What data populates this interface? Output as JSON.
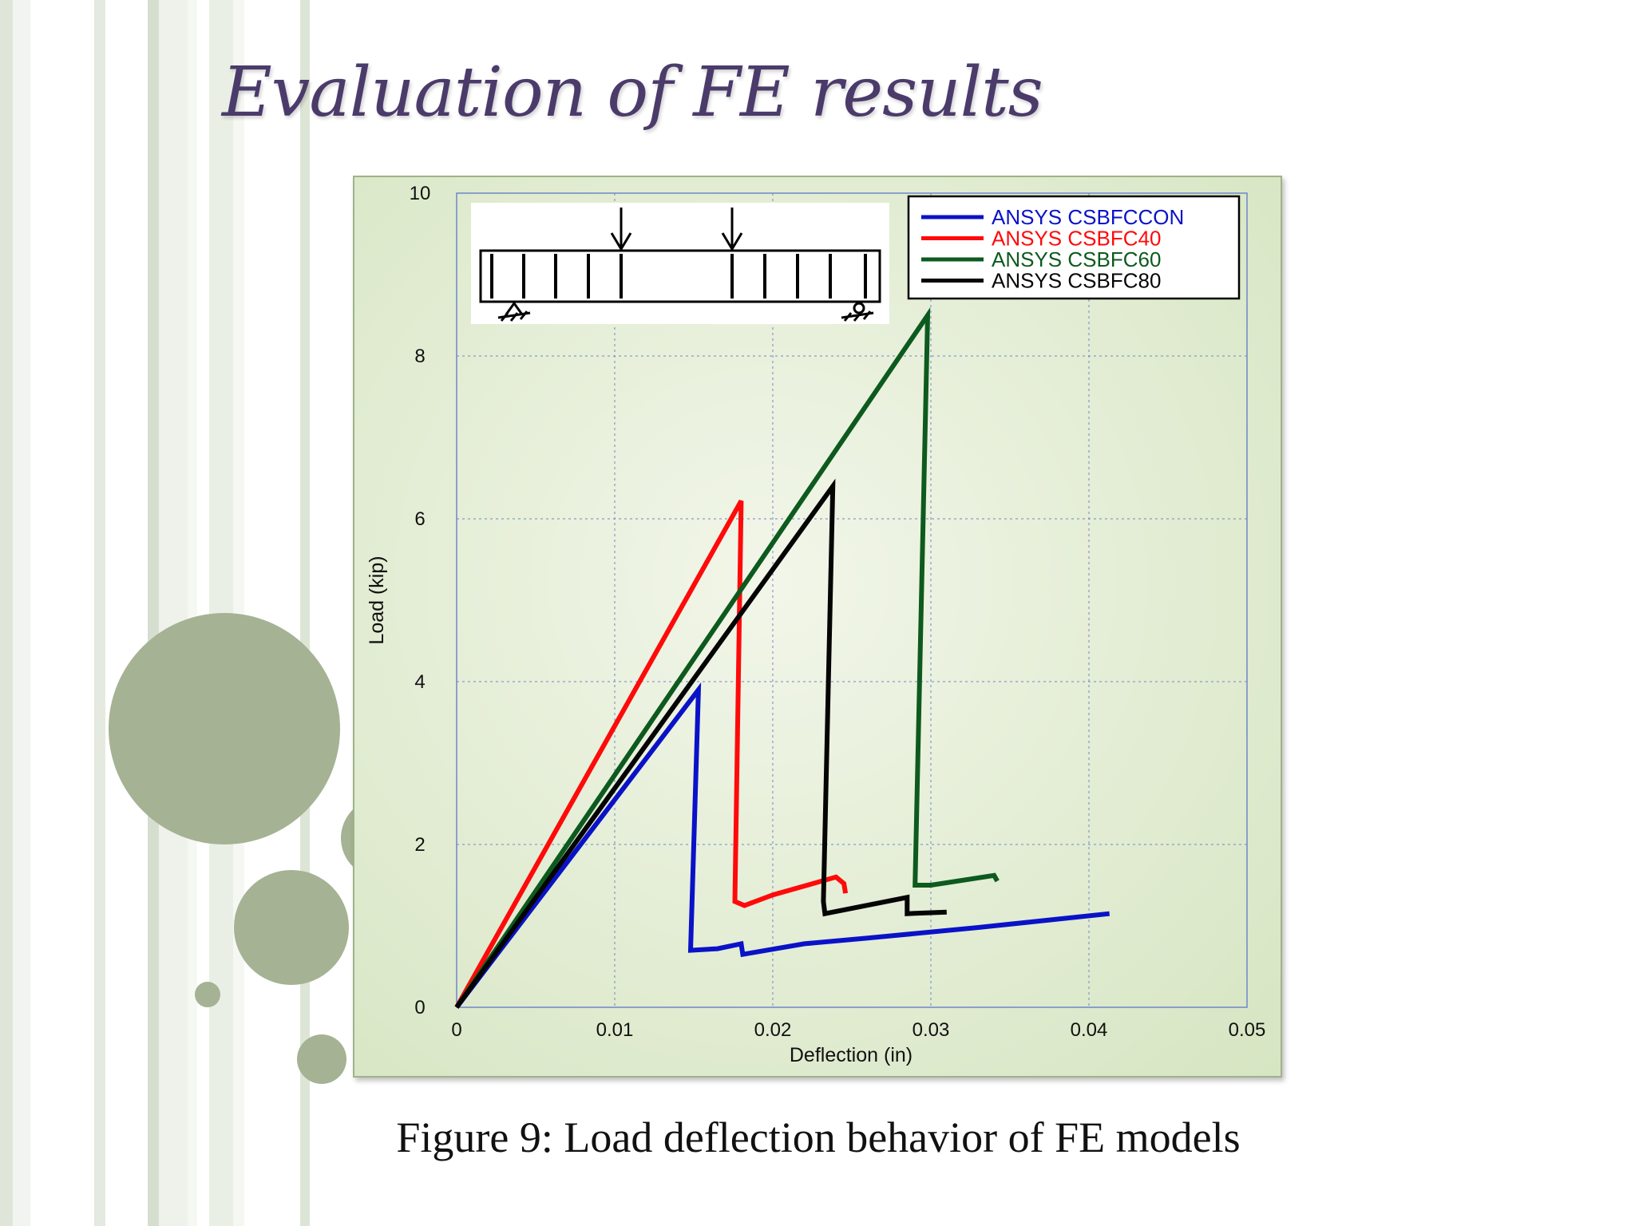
{
  "slide": {
    "title": "Evaluation of FE results",
    "caption": "Figure 9: Load deflection behavior of FE models"
  },
  "colors": {
    "accent_circle": "#a5b293",
    "title_color": "#4b3b6a",
    "plot_grid": "#6f86c9"
  },
  "chart_data": {
    "type": "line",
    "title": "",
    "xlabel": "Deflection (in)",
    "ylabel": "Load (kip)",
    "xlim": [
      0,
      0.05
    ],
    "ylim": [
      0,
      10
    ],
    "xticks": [
      0,
      0.01,
      0.02,
      0.03,
      0.04,
      0.05
    ],
    "xtick_labels": [
      "0",
      "0.01",
      "0.02",
      "0.03",
      "0.04",
      "0.05"
    ],
    "yticks": [
      0,
      2,
      4,
      6,
      8,
      10
    ],
    "ytick_labels": [
      "0",
      "2",
      "4",
      "6",
      "8",
      "10"
    ],
    "grid": true,
    "legend_position": "top-right",
    "series": [
      {
        "name": "ANSYS CSBFCCON",
        "color": "#0a12c8",
        "points": [
          [
            0,
            0
          ],
          [
            0.0153,
            3.9
          ],
          [
            0.0148,
            0.7
          ],
          [
            0.0165,
            0.72
          ],
          [
            0.018,
            0.78
          ],
          [
            0.0181,
            0.65
          ],
          [
            0.022,
            0.78
          ],
          [
            0.026,
            0.85
          ],
          [
            0.033,
            0.98
          ],
          [
            0.0413,
            1.15
          ]
        ]
      },
      {
        "name": "ANSYS CSBFC40",
        "color": "#ff0a0a",
        "points": [
          [
            0,
            0
          ],
          [
            0.018,
            6.22
          ],
          [
            0.0176,
            1.3
          ],
          [
            0.0182,
            1.25
          ],
          [
            0.02,
            1.38
          ],
          [
            0.024,
            1.6
          ],
          [
            0.0245,
            1.52
          ],
          [
            0.0246,
            1.4
          ]
        ]
      },
      {
        "name": "ANSYS CSBFC60",
        "color": "#0d5a1e",
        "points": [
          [
            0,
            0
          ],
          [
            0.0298,
            8.5
          ],
          [
            0.029,
            1.5
          ],
          [
            0.03,
            1.5
          ],
          [
            0.034,
            1.62
          ],
          [
            0.0342,
            1.55
          ]
        ]
      },
      {
        "name": "ANSYS CSBFC80",
        "color": "#050505",
        "points": [
          [
            0,
            0
          ],
          [
            0.0238,
            6.4
          ],
          [
            0.0232,
            1.3
          ],
          [
            0.0233,
            1.15
          ],
          [
            0.0285,
            1.35
          ],
          [
            0.0285,
            1.15
          ],
          [
            0.031,
            1.17
          ]
        ]
      }
    ]
  }
}
